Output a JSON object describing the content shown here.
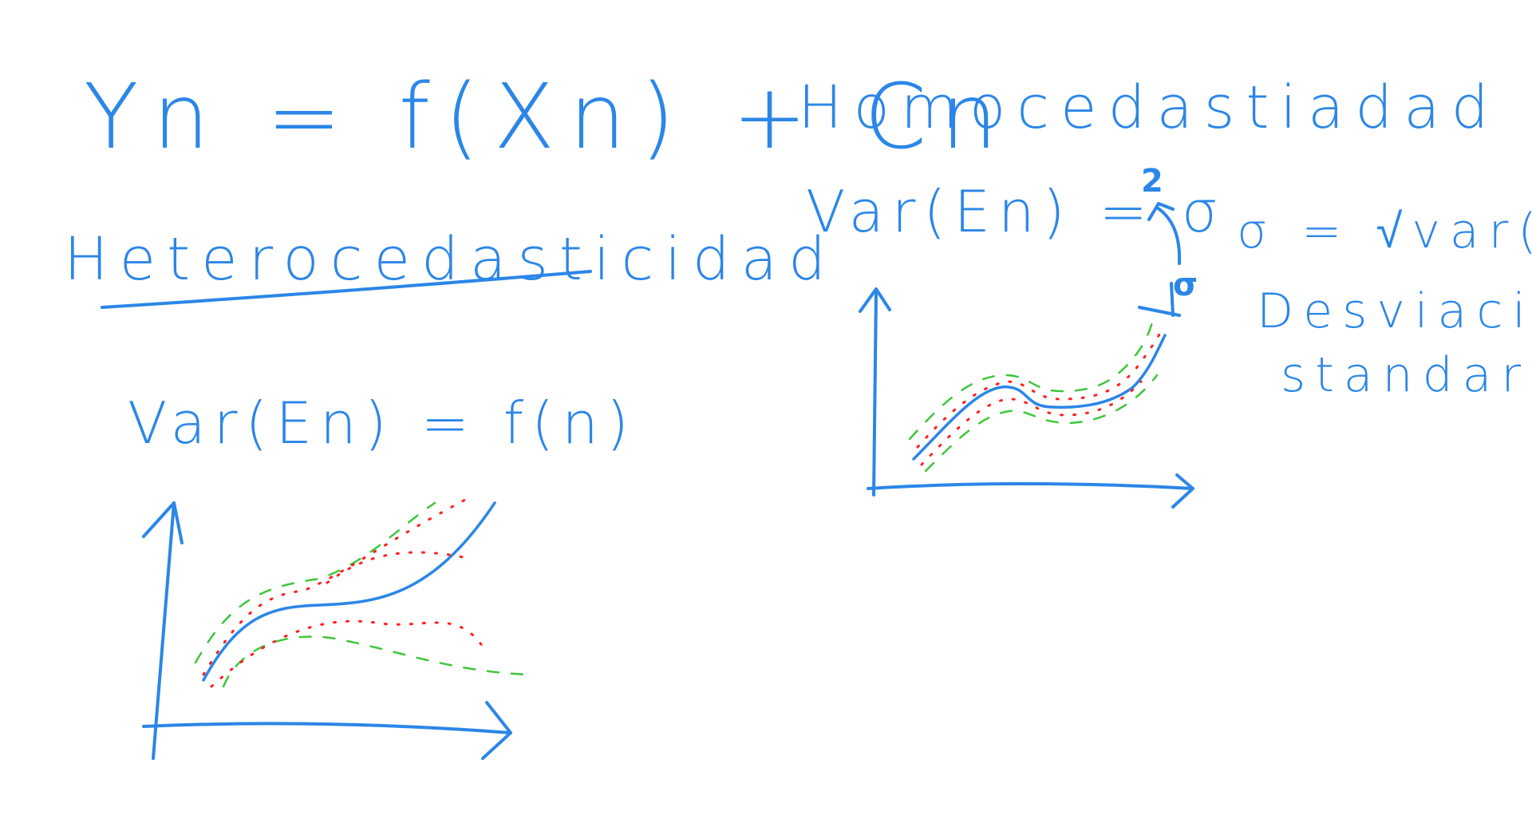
{
  "left": {
    "model_equation": "Yn = f(Xn) + Cn",
    "title": "Heterocedasticidad",
    "variance_equation": "Var(En) = f(n)"
  },
  "right": {
    "title": "Homocedastiadad",
    "variance_equation": "Var(En) = σ",
    "exponent": "2",
    "sigma_equation": "σ = √var(ε)",
    "sigma_mark": "σ",
    "caption_line1": "Desviación",
    "caption_line2": "standard"
  },
  "colors": {
    "ink": "#2b86e8",
    "band": "#3ec63a",
    "scatter": "#ff1f1f"
  }
}
